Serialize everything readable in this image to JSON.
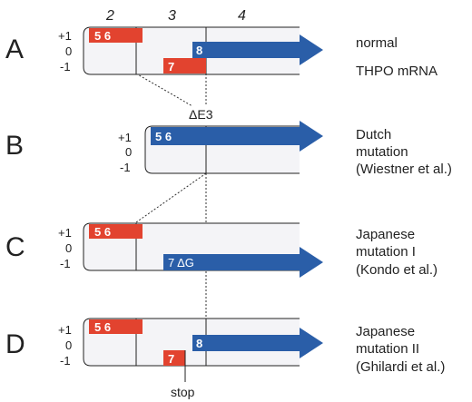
{
  "exon_headers": [
    "2",
    "3",
    "4"
  ],
  "frame_labels": [
    "+1",
    "0",
    "-1"
  ],
  "colors": {
    "red": "#e2432f",
    "blue": "#2a5ea8",
    "frame_fill": "#f4f4f7",
    "frame_stroke": "#222222"
  },
  "rows": [
    {
      "letter": "A",
      "description": [
        "normal",
        "THPO mRNA"
      ],
      "red_upper_label": "5 6",
      "red_lower_label": "7",
      "arrow_label": "8"
    },
    {
      "letter": "B",
      "description": [
        "Dutch",
        "mutation",
        "(Wiestner et al.)"
      ],
      "arrow_label": "5 6"
    },
    {
      "letter": "C",
      "description": [
        "Japanese",
        "mutation I",
        "(Kondo et al.)"
      ],
      "red_upper_label": "5 6",
      "arrow_label": "7 ΔG"
    },
    {
      "letter": "D",
      "description": [
        "Japanese",
        "mutation II",
        "(Ghilardi et al.)"
      ],
      "red_upper_label": "5 6",
      "red_lower_label": "7",
      "arrow_label": "8"
    }
  ],
  "annotations": {
    "delta_e3": "ΔE3",
    "stop": "stop"
  }
}
